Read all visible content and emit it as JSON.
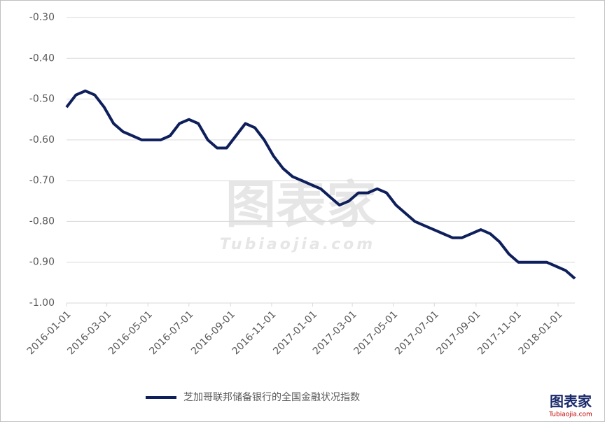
{
  "chart_data": {
    "type": "line",
    "x": [
      "2016-01-01",
      "2016-01-15",
      "2016-01-29",
      "2016-02-12",
      "2016-02-26",
      "2016-03-11",
      "2016-03-25",
      "2016-04-08",
      "2016-04-22",
      "2016-05-06",
      "2016-05-20",
      "2016-06-03",
      "2016-06-17",
      "2016-07-01",
      "2016-07-15",
      "2016-07-29",
      "2016-08-12",
      "2016-08-26",
      "2016-09-09",
      "2016-09-23",
      "2016-10-07",
      "2016-10-21",
      "2016-11-04",
      "2016-11-18",
      "2016-12-02",
      "2016-12-16",
      "2016-12-30",
      "2017-01-13",
      "2017-01-27",
      "2017-02-10",
      "2017-02-24",
      "2017-03-10",
      "2017-03-24",
      "2017-04-07",
      "2017-04-21",
      "2017-05-05",
      "2017-05-19",
      "2017-06-02",
      "2017-06-16",
      "2017-06-30",
      "2017-07-14",
      "2017-07-28",
      "2017-08-11",
      "2017-08-25",
      "2017-09-08",
      "2017-09-22",
      "2017-10-06",
      "2017-10-20",
      "2017-11-03",
      "2017-11-17",
      "2017-12-01",
      "2017-12-15",
      "2017-12-29",
      "2018-01-12",
      "2018-01-26"
    ],
    "series": [
      {
        "name": "芝加哥联邦储备银行的全国金融状况指数",
        "color": "#0e1f5b",
        "values": [
          -0.52,
          -0.49,
          -0.48,
          -0.49,
          -0.52,
          -0.56,
          -0.58,
          -0.59,
          -0.6,
          -0.6,
          -0.6,
          -0.59,
          -0.56,
          -0.55,
          -0.56,
          -0.6,
          -0.62,
          -0.62,
          -0.59,
          -0.56,
          -0.57,
          -0.6,
          -0.64,
          -0.67,
          -0.69,
          -0.7,
          -0.71,
          -0.72,
          -0.74,
          -0.76,
          -0.75,
          -0.73,
          -0.73,
          -0.72,
          -0.73,
          -0.76,
          -0.78,
          -0.8,
          -0.81,
          -0.82,
          -0.83,
          -0.84,
          -0.84,
          -0.83,
          -0.82,
          -0.83,
          -0.85,
          -0.88,
          -0.9,
          -0.9,
          -0.9,
          -0.9,
          -0.91,
          -0.92,
          -0.94
        ]
      }
    ],
    "xlim": [
      "2016-01-01",
      "2018-01-26"
    ],
    "xticks": [
      "2016-01-01",
      "2016-03-01",
      "2016-05-01",
      "2016-07-01",
      "2016-09-01",
      "2016-11-01",
      "2017-01-01",
      "2017-03-01",
      "2017-05-01",
      "2017-07-01",
      "2017-09-01",
      "2017-11-01",
      "2018-01-01"
    ],
    "ylim": [
      -1.0,
      -0.3
    ],
    "yticks": [
      {
        "value": -0.3,
        "label": "-0.30"
      },
      {
        "value": -0.4,
        "label": "-0.40"
      },
      {
        "value": -0.5,
        "label": "-0.50"
      },
      {
        "value": -0.6,
        "label": "-0.60"
      },
      {
        "value": -0.7,
        "label": "-0.70"
      },
      {
        "value": -0.8,
        "label": "-0.80"
      },
      {
        "value": -0.9,
        "label": "-0.90"
      },
      {
        "value": -1.0,
        "label": "-1.00"
      }
    ],
    "grid": true,
    "legend": "bottom",
    "watermark": "图表家",
    "watermark_url": "Tubiaojia.com"
  }
}
